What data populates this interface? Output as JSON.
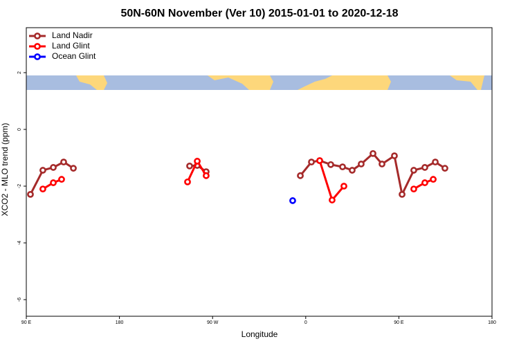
{
  "chart_data": {
    "type": "line",
    "title": "50N-60N November (Ver 10)   2015-01-01 to 2020-12-18",
    "x_label": "Longitude",
    "y_label": "XCO2 - MLO trend (ppm)",
    "xlim": [
      90,
      540
    ],
    "ylim": [
      -6.585,
      3.585
    ],
    "xticks": [
      {
        "value": 90,
        "label": "90 E"
      },
      180,
      {
        "value": 270,
        "label": "90 W"
      },
      {
        "value": 360,
        "label": "0"
      },
      {
        "value": 450,
        "label": "90 E"
      },
      {
        "value": 540,
        "label": "180"
      }
    ],
    "yticks": [
      -6,
      -4,
      -2,
      0,
      2
    ],
    "grid": false,
    "legend": "top-left",
    "series": [
      {
        "name": "Land Nadir",
        "color": "#a52a2a",
        "x": [
          94.0,
          106.0,
          116.1,
          126.1,
          135.5,
          null,
          247.8,
          255.2,
          263.8,
          null,
          354.8,
          365.5,
          373.5,
          384.2,
          395.6,
          404.9,
          413.6,
          425.0,
          433.7,
          445.7,
          453.1,
          464.4,
          475.1,
          485.2,
          494.5
        ],
        "values": [
          -2.29,
          -1.44,
          -1.34,
          -1.15,
          -1.37,
          null,
          -1.29,
          -1.27,
          -1.49,
          null,
          -1.63,
          -1.15,
          -1.1,
          -1.24,
          -1.32,
          -1.44,
          -1.22,
          -0.85,
          -1.22,
          -0.93,
          -2.29,
          -1.44,
          -1.34,
          -1.15,
          -1.37
        ]
      },
      {
        "name": "Land Glint",
        "color": "#ff0000",
        "x": [
          106.0,
          116.1,
          124.1,
          null,
          245.8,
          255.2,
          263.8,
          null,
          373.5,
          385.5,
          396.9,
          null,
          464.4,
          475.1,
          483.2
        ],
        "values": [
          -2.1,
          -1.88,
          -1.76,
          null,
          -1.85,
          -1.12,
          -1.63,
          null,
          -1.1,
          -2.49,
          -2.0,
          null,
          -2.1,
          -1.88,
          -1.76
        ]
      },
      {
        "name": "Ocean Glint",
        "color": "#0000ff",
        "x": [
          347.4
        ],
        "values": [
          -2.51
        ]
      }
    ]
  }
}
